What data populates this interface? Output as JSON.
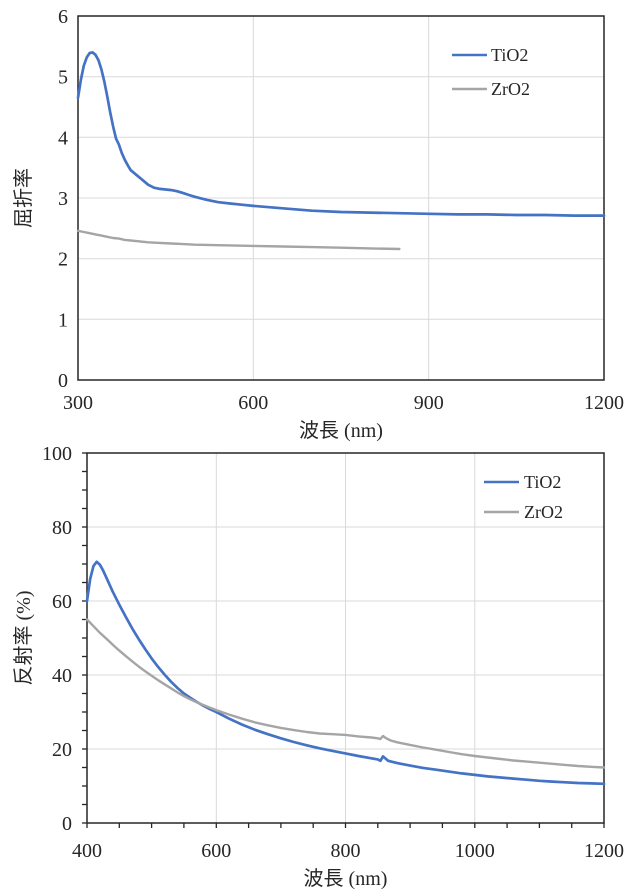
{
  "page": {
    "background": "#ffffff"
  },
  "colors": {
    "tio2": "#4472c4",
    "zro2": "#a5a5a5",
    "grid": "#d9d9d9",
    "axis": "#262626",
    "text": "#262626"
  },
  "chart_data": [
    {
      "type": "line",
      "title": "",
      "xlabel": "波長 (nm)",
      "ylabel": "屈折率",
      "xlim": [
        300,
        1200
      ],
      "ylim": [
        0,
        6
      ],
      "x_ticks": [
        300,
        600,
        900,
        1200
      ],
      "y_ticks": [
        0,
        1,
        2,
        3,
        4,
        5,
        6
      ],
      "x_gridlines": [
        600,
        900
      ],
      "y_gridlines": [
        1,
        2,
        3,
        4,
        5
      ],
      "x_minor_step": 0,
      "y_minor_step": 0,
      "grid_on": true,
      "legend_position": "top-right-inside",
      "legend_border": false,
      "grid_color": "#d9d9d9",
      "axis_color": "#262626",
      "series": [
        {
          "name": "TiO2",
          "color": "#4472c4",
          "width": 2.7,
          "points": [
            [
              300,
              4.65
            ],
            [
              305,
              4.95
            ],
            [
              310,
              5.18
            ],
            [
              315,
              5.32
            ],
            [
              320,
              5.39
            ],
            [
              325,
              5.4
            ],
            [
              330,
              5.36
            ],
            [
              335,
              5.27
            ],
            [
              340,
              5.12
            ],
            [
              345,
              4.92
            ],
            [
              350,
              4.68
            ],
            [
              355,
              4.42
            ],
            [
              360,
              4.18
            ],
            [
              365,
              3.98
            ],
            [
              370,
              3.88
            ],
            [
              375,
              3.74
            ],
            [
              380,
              3.63
            ],
            [
              385,
              3.54
            ],
            [
              390,
              3.46
            ],
            [
              400,
              3.38
            ],
            [
              410,
              3.3
            ],
            [
              420,
              3.22
            ],
            [
              430,
              3.17
            ],
            [
              440,
              3.15
            ],
            [
              450,
              3.14
            ],
            [
              460,
              3.13
            ],
            [
              470,
              3.11
            ],
            [
              480,
              3.08
            ],
            [
              490,
              3.05
            ],
            [
              500,
              3.02
            ],
            [
              520,
              2.97
            ],
            [
              540,
              2.93
            ],
            [
              560,
              2.91
            ],
            [
              580,
              2.89
            ],
            [
              600,
              2.87
            ],
            [
              650,
              2.83
            ],
            [
              700,
              2.79
            ],
            [
              750,
              2.77
            ],
            [
              800,
              2.76
            ],
            [
              850,
              2.75
            ],
            [
              900,
              2.74
            ],
            [
              950,
              2.73
            ],
            [
              1000,
              2.73
            ],
            [
              1050,
              2.72
            ],
            [
              1100,
              2.72
            ],
            [
              1150,
              2.71
            ],
            [
              1200,
              2.71
            ]
          ]
        },
        {
          "name": "ZrO2",
          "color": "#a5a5a5",
          "width": 2.4,
          "points": [
            [
              300,
              2.46
            ],
            [
              310,
              2.44
            ],
            [
              320,
              2.42
            ],
            [
              330,
              2.4
            ],
            [
              340,
              2.38
            ],
            [
              350,
              2.36
            ],
            [
              360,
              2.34
            ],
            [
              370,
              2.33
            ],
            [
              380,
              2.31
            ],
            [
              390,
              2.3
            ],
            [
              400,
              2.29
            ],
            [
              420,
              2.27
            ],
            [
              440,
              2.26
            ],
            [
              460,
              2.25
            ],
            [
              480,
              2.24
            ],
            [
              500,
              2.23
            ],
            [
              550,
              2.22
            ],
            [
              600,
              2.21
            ],
            [
              650,
              2.2
            ],
            [
              700,
              2.19
            ],
            [
              750,
              2.18
            ],
            [
              800,
              2.17
            ],
            [
              850,
              2.16
            ]
          ]
        }
      ]
    },
    {
      "type": "line",
      "title": "",
      "xlabel": "波長 (nm)",
      "ylabel": "反射率 (%)",
      "xlim": [
        400,
        1200
      ],
      "ylim": [
        0,
        100
      ],
      "x_ticks": [
        400,
        600,
        800,
        1000,
        1200
      ],
      "y_ticks": [
        0,
        20,
        40,
        60,
        80,
        100
      ],
      "x_gridlines": [
        600,
        800,
        1000
      ],
      "y_gridlines": [
        20,
        40,
        60,
        80
      ],
      "x_minor_step": 50,
      "y_minor_step": 5,
      "grid_on": true,
      "legend_position": "top-right-inside",
      "legend_border": false,
      "grid_color": "#d9d9d9",
      "axis_color": "#262626",
      "series": [
        {
          "name": "TiO2",
          "color": "#4472c4",
          "width": 2.7,
          "points": [
            [
              400,
              60
            ],
            [
              405,
              66
            ],
            [
              410,
              69.5
            ],
            [
              415,
              70.6
            ],
            [
              420,
              69.8
            ],
            [
              425,
              68.2
            ],
            [
              430,
              66.3
            ],
            [
              440,
              62.5
            ],
            [
              450,
              59
            ],
            [
              460,
              55.7
            ],
            [
              470,
              52.6
            ],
            [
              480,
              49.7
            ],
            [
              490,
              47
            ],
            [
              500,
              44.5
            ],
            [
              510,
              42.2
            ],
            [
              520,
              40.1
            ],
            [
              530,
              38.2
            ],
            [
              540,
              36.5
            ],
            [
              550,
              35
            ],
            [
              560,
              33.8
            ],
            [
              570,
              32.7
            ],
            [
              580,
              31.7
            ],
            [
              590,
              30.8
            ],
            [
              600,
              30
            ],
            [
              620,
              28.2
            ],
            [
              640,
              26.6
            ],
            [
              660,
              25.2
            ],
            [
              680,
              24
            ],
            [
              700,
              22.9
            ],
            [
              720,
              21.9
            ],
            [
              740,
              21
            ],
            [
              760,
              20.2
            ],
            [
              780,
              19.5
            ],
            [
              800,
              18.8
            ],
            [
              820,
              18.1
            ],
            [
              840,
              17.5
            ],
            [
              850,
              17.2
            ],
            [
              854,
              16.8
            ],
            [
              858,
              18
            ],
            [
              862,
              17.4
            ],
            [
              866,
              16.8
            ],
            [
              880,
              16.2
            ],
            [
              900,
              15.5
            ],
            [
              920,
              14.9
            ],
            [
              940,
              14.4
            ],
            [
              960,
              13.9
            ],
            [
              980,
              13.4
            ],
            [
              1000,
              13
            ],
            [
              1020,
              12.6
            ],
            [
              1040,
              12.3
            ],
            [
              1060,
              12
            ],
            [
              1080,
              11.7
            ],
            [
              1100,
              11.4
            ],
            [
              1120,
              11.2
            ],
            [
              1140,
              11
            ],
            [
              1160,
              10.8
            ],
            [
              1180,
              10.7
            ],
            [
              1200,
              10.6
            ]
          ]
        },
        {
          "name": "ZrO2",
          "color": "#a5a5a5",
          "width": 2.4,
          "points": [
            [
              400,
              55
            ],
            [
              410,
              53.2
            ],
            [
              420,
              51.4
            ],
            [
              430,
              49.8
            ],
            [
              440,
              48.2
            ],
            [
              450,
              46.6
            ],
            [
              460,
              45.1
            ],
            [
              470,
              43.7
            ],
            [
              480,
              42.3
            ],
            [
              490,
              41
            ],
            [
              500,
              39.8
            ],
            [
              510,
              38.6
            ],
            [
              520,
              37.5
            ],
            [
              530,
              36.4
            ],
            [
              540,
              35.3
            ],
            [
              550,
              34.3
            ],
            [
              560,
              33.4
            ],
            [
              570,
              32.6
            ],
            [
              580,
              31.9
            ],
            [
              590,
              31.2
            ],
            [
              600,
              30.5
            ],
            [
              620,
              29.3
            ],
            [
              640,
              28.2
            ],
            [
              660,
              27.2
            ],
            [
              680,
              26.4
            ],
            [
              700,
              25.7
            ],
            [
              720,
              25.1
            ],
            [
              740,
              24.6
            ],
            [
              760,
              24.2
            ],
            [
              780,
              24
            ],
            [
              800,
              23.8
            ],
            [
              820,
              23.4
            ],
            [
              840,
              23.1
            ],
            [
              850,
              22.9
            ],
            [
              854,
              22.7
            ],
            [
              858,
              23.5
            ],
            [
              862,
              23
            ],
            [
              870,
              22.3
            ],
            [
              880,
              21.8
            ],
            [
              900,
              21.1
            ],
            [
              920,
              20.4
            ],
            [
              940,
              19.8
            ],
            [
              960,
              19.2
            ],
            [
              980,
              18.6
            ],
            [
              1000,
              18.1
            ],
            [
              1020,
              17.7
            ],
            [
              1040,
              17.3
            ],
            [
              1060,
              16.9
            ],
            [
              1080,
              16.6
            ],
            [
              1100,
              16.3
            ],
            [
              1120,
              16
            ],
            [
              1140,
              15.7
            ],
            [
              1160,
              15.4
            ],
            [
              1180,
              15.2
            ],
            [
              1200,
              15
            ]
          ]
        }
      ]
    }
  ]
}
